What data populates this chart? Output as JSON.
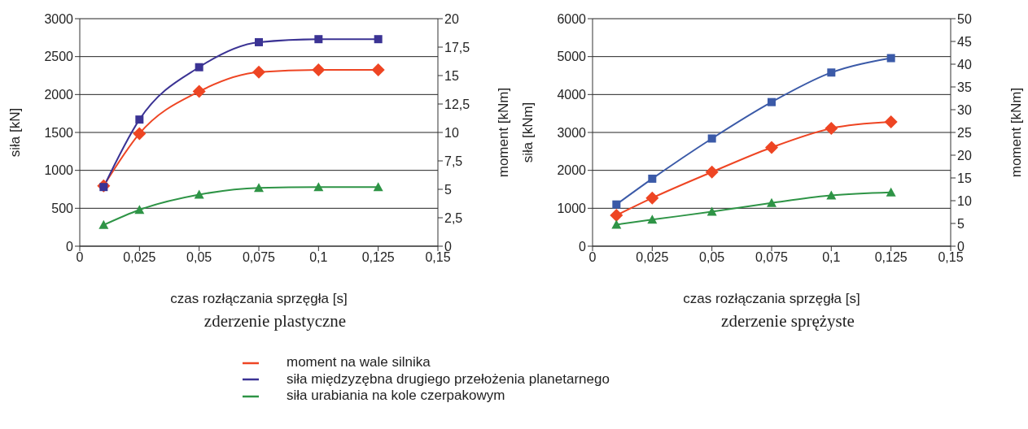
{
  "chart_data": [
    {
      "type": "line",
      "title": "zderzenie plastyczne",
      "xlabel": "czas rozłączania sprzęgła [s]",
      "ylabel": "siła [kN]",
      "y2label": "moment [kNm]",
      "x": [
        0.01,
        0.025,
        0.05,
        0.075,
        0.1,
        0.125
      ],
      "series": [
        {
          "name": "moment na wale silnika",
          "color": "#ee4523",
          "marker": "diamond",
          "axis": "y2",
          "values": [
            5.3,
            9.9,
            13.6,
            15.3,
            15.5,
            15.5
          ]
        },
        {
          "name": "siła międzyzębna drugiego przełożenia planetarnego",
          "color": "#3b3394",
          "marker": "square",
          "values": [
            780,
            1670,
            2360,
            2690,
            2730,
            2730
          ]
        },
        {
          "name": "siła urabiania na kole czerpakowym",
          "color": "#2e9446",
          "marker": "triangle",
          "values": [
            280,
            480,
            680,
            770,
            780,
            780
          ]
        }
      ],
      "xlim": [
        0,
        0.15
      ],
      "xticks": [
        0,
        {
          "value": 0.025,
          "label": "0,025"
        },
        {
          "value": 0.05,
          "label": "0,05"
        },
        {
          "value": 0.075,
          "label": "0,075"
        },
        {
          "value": 0.1,
          "label": "0,1"
        },
        {
          "value": 0.125,
          "label": "0,125"
        },
        {
          "value": 0.15,
          "label": "0,15"
        }
      ],
      "ylim": [
        0,
        3000
      ],
      "yticks": [
        0,
        500,
        1000,
        1500,
        2000,
        2500,
        3000
      ],
      "y2lim": [
        0,
        20
      ],
      "y2ticks": [
        0,
        {
          "value": 2.5,
          "label": "2,5"
        },
        5,
        {
          "value": 7.5,
          "label": "7,5"
        },
        10,
        {
          "value": 12.5,
          "label": "12,5"
        },
        15,
        {
          "value": 17.5,
          "label": "17,5"
        },
        20
      ],
      "grid": "y",
      "legend": "bottom"
    },
    {
      "type": "line",
      "title": "zderzenie sprężyste",
      "xlabel": "czas rozłączania sprzęgła [s]",
      "ylabel": "siła [kNm]",
      "y2label": "moment [kNm]",
      "x": [
        0.01,
        0.025,
        0.05,
        0.075,
        0.1,
        0.125
      ],
      "series": [
        {
          "color": "#ee4523",
          "marker": "diamond",
          "axis": "y2",
          "values": [
            6.8,
            10.6,
            16.3,
            21.7,
            25.9,
            27.3
          ]
        },
        {
          "color": "#3b5aa8",
          "marker": "square",
          "values": [
            1100,
            1780,
            2840,
            3800,
            4580,
            4960
          ]
        },
        {
          "color": "#2e9446",
          "marker": "triangle",
          "values": [
            570,
            700,
            910,
            1140,
            1340,
            1420
          ]
        }
      ],
      "xlim": [
        0,
        0.15
      ],
      "xticks": [
        0,
        {
          "value": 0.025,
          "label": "0,025"
        },
        {
          "value": 0.05,
          "label": "0,05"
        },
        {
          "value": 0.075,
          "label": "0,075"
        },
        {
          "value": 0.1,
          "label": "0,1"
        },
        {
          "value": 0.125,
          "label": "0,125"
        },
        {
          "value": 0.15,
          "label": "0,15"
        }
      ],
      "ylim": [
        0,
        6000
      ],
      "yticks": [
        0,
        1000,
        2000,
        3000,
        4000,
        5000,
        6000
      ],
      "y2lim": [
        0,
        50
      ],
      "y2ticks": [
        0,
        5,
        10,
        15,
        20,
        25,
        30,
        35,
        40,
        45,
        50
      ],
      "grid": "y"
    }
  ]
}
